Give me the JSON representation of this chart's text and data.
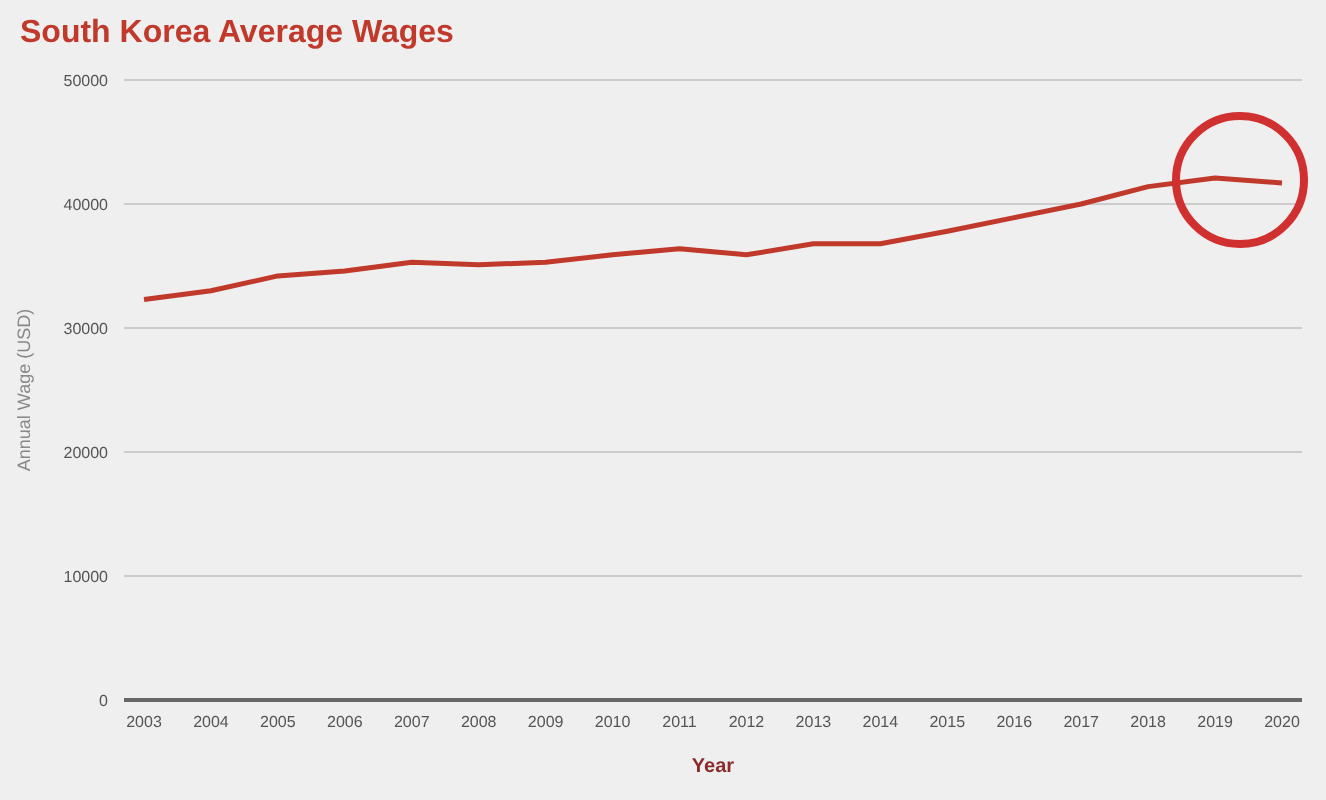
{
  "chart_data": {
    "type": "line",
    "title": "South Korea Average Wages",
    "xlabel": "Year",
    "ylabel": "Annual Wage (USD)",
    "categories": [
      "2003",
      "2004",
      "2005",
      "2006",
      "2007",
      "2008",
      "2009",
      "2010",
      "2011",
      "2012",
      "2013",
      "2014",
      "2015",
      "2016",
      "2017",
      "2018",
      "2019",
      "2020"
    ],
    "series": [
      {
        "color": "#c0392b",
        "values": [
          32300,
          33000,
          34200,
          34600,
          35300,
          35100,
          35300,
          35900,
          36400,
          35900,
          36800,
          36800,
          37800,
          38900,
          40000,
          41400,
          42100,
          41700
        ]
      }
    ],
    "ylim": [
      0,
      50000
    ],
    "yticks": [
      0,
      10000,
      20000,
      30000,
      40000,
      50000
    ],
    "grid": "y",
    "legend": false,
    "marker": "none",
    "line_style": "solid"
  }
}
